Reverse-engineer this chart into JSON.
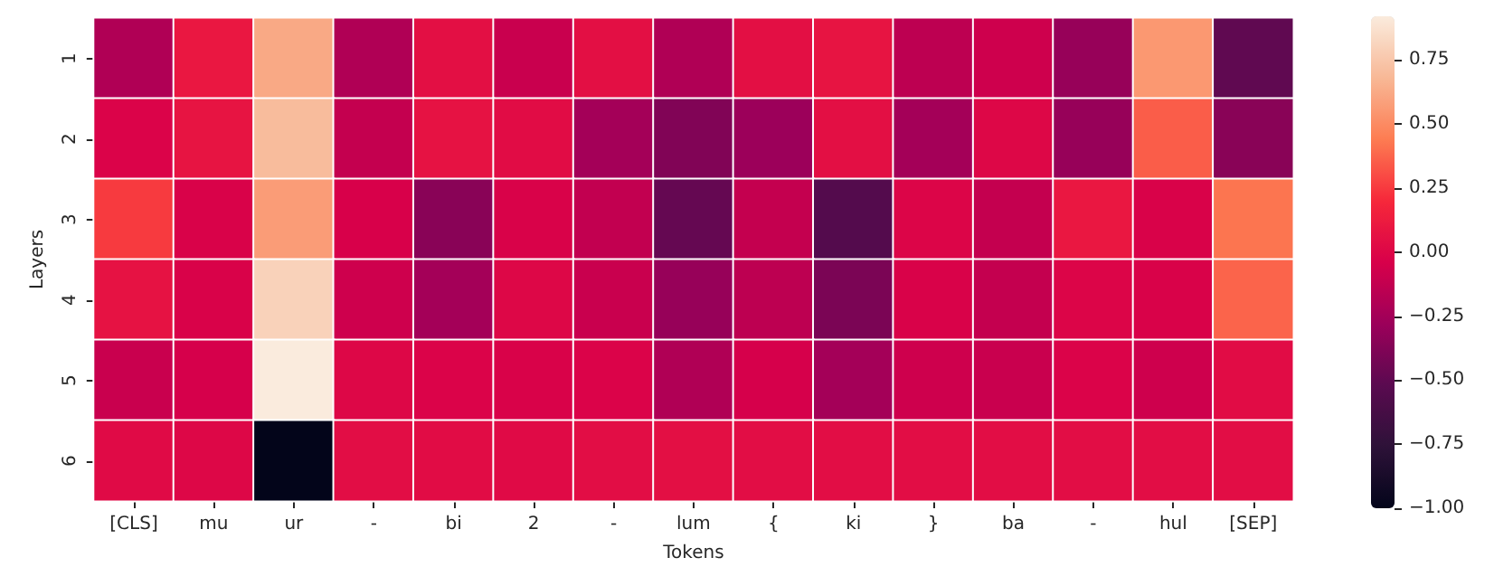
{
  "chart_data": {
    "type": "heatmap",
    "xlabel": "Tokens",
    "ylabel": "Layers",
    "categories": [
      "[CLS]",
      "mu",
      "ur",
      "-",
      "bi",
      "2",
      "-",
      "lum",
      "{",
      "ki",
      "}",
      "ba",
      "-",
      "hul",
      "[SEP]"
    ],
    "y_categories": [
      "1",
      "2",
      "3",
      "4",
      "5",
      "6"
    ],
    "cells": [
      [
        -0.2,
        0.1,
        0.62,
        -0.2,
        0.05,
        -0.1,
        0.05,
        -0.2,
        0.05,
        0.08,
        -0.15,
        -0.08,
        -0.3,
        0.55,
        -0.5
      ],
      [
        -0.02,
        0.08,
        0.7,
        -0.12,
        0.07,
        0.03,
        -0.25,
        -0.38,
        -0.28,
        0.05,
        -0.25,
        0.0,
        -0.3,
        0.35,
        -0.35
      ],
      [
        0.25,
        -0.03,
        0.57,
        -0.04,
        -0.35,
        -0.03,
        -0.13,
        -0.48,
        -0.12,
        -0.55,
        -0.01,
        -0.12,
        0.1,
        -0.03,
        0.42
      ],
      [
        0.07,
        -0.03,
        0.8,
        -0.08,
        -0.25,
        0.0,
        -0.1,
        -0.3,
        -0.15,
        -0.4,
        -0.03,
        -0.12,
        -0.01,
        -0.03,
        0.37
      ],
      [
        -0.1,
        -0.05,
        0.92,
        0.0,
        -0.02,
        -0.03,
        -0.02,
        -0.2,
        -0.05,
        -0.25,
        -0.08,
        -0.1,
        -0.02,
        -0.08,
        0.03
      ],
      [
        0.02,
        0.0,
        -1.0,
        0.04,
        0.03,
        0.02,
        0.04,
        0.05,
        0.04,
        0.04,
        0.04,
        0.04,
        0.04,
        0.04,
        0.04
      ]
    ],
    "clim": [
      -1.0,
      0.92
    ],
    "cticks": [
      {
        "value": -1.0,
        "label": "−1.00"
      },
      {
        "value": -0.75,
        "label": "−0.75"
      },
      {
        "value": -0.5,
        "label": "−0.50"
      },
      {
        "value": -0.25,
        "label": "−0.25"
      },
      {
        "value": 0.0,
        "label": "0.00"
      },
      {
        "value": 0.25,
        "label": "0.25"
      },
      {
        "value": 0.5,
        "label": "0.50"
      },
      {
        "value": 0.75,
        "label": "0.75"
      }
    ]
  }
}
